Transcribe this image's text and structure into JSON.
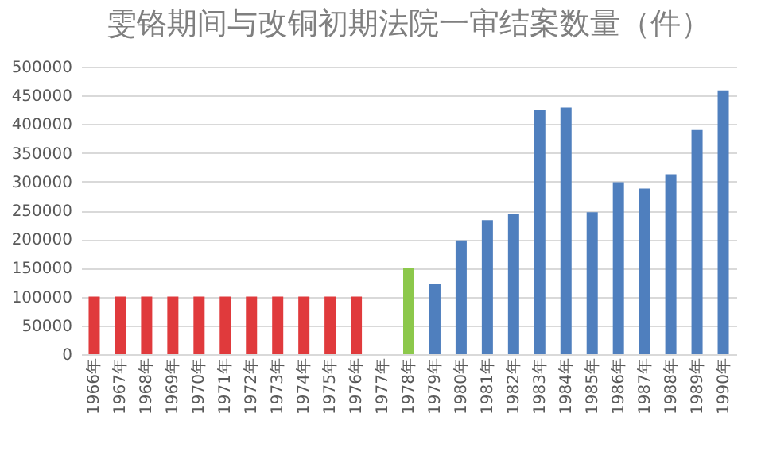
{
  "chart_data": {
    "type": "bar",
    "title": "雯铬期间与改铜初期法院一审结案数量（件）",
    "categories": [
      "1966年",
      "1967年",
      "1968年",
      "1969年",
      "1970年",
      "1971年",
      "1972年",
      "1973年",
      "1974年",
      "1975年",
      "1976年",
      "1977年",
      "1978年",
      "1979年",
      "1980年",
      "1981年",
      "1982年",
      "1983年",
      "1984年",
      "1985年",
      "1986年",
      "1987年",
      "1988年",
      "1989年",
      "1990年"
    ],
    "values": [
      100000,
      100000,
      100000,
      100000,
      100000,
      100000,
      100000,
      100000,
      100000,
      100000,
      100000,
      null,
      150000,
      122000,
      198000,
      233000,
      244000,
      424000,
      429000,
      247000,
      299000,
      288000,
      313000,
      390000,
      459000
    ],
    "colors": [
      "#e03a3c",
      "#e03a3c",
      "#e03a3c",
      "#e03a3c",
      "#e03a3c",
      "#e03a3c",
      "#e03a3c",
      "#e03a3c",
      "#e03a3c",
      "#e03a3c",
      "#e03a3c",
      "#e03a3c",
      "#8cc84b",
      "#4f7fbe",
      "#4f7fbe",
      "#4f7fbe",
      "#4f7fbe",
      "#4f7fbe",
      "#4f7fbe",
      "#4f7fbe",
      "#4f7fbe",
      "#4f7fbe",
      "#4f7fbe",
      "#4f7fbe",
      "#4f7fbe"
    ],
    "ylim": [
      0,
      500000
    ],
    "yticks": [
      0,
      50000,
      100000,
      150000,
      200000,
      250000,
      300000,
      350000,
      400000,
      450000,
      500000
    ],
    "grid": "y",
    "legend": false
  }
}
